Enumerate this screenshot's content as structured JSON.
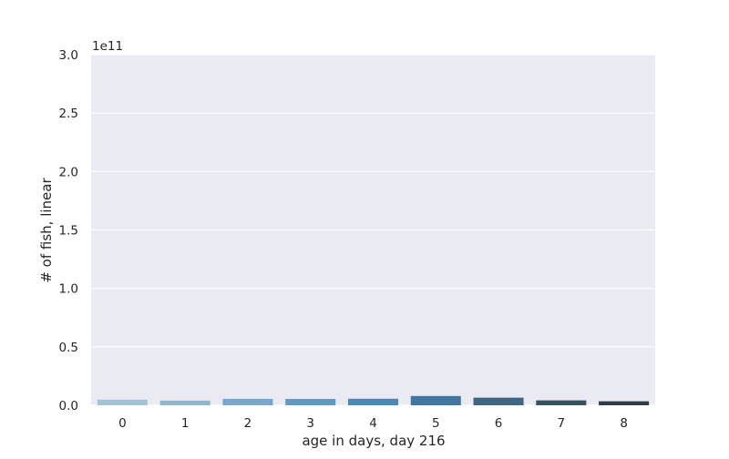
{
  "chart_data": {
    "type": "bar",
    "categories": [
      "0",
      "1",
      "2",
      "3",
      "4",
      "5",
      "6",
      "7",
      "8"
    ],
    "values": [
      4800000000.0,
      4000000000.0,
      5500000000.0,
      5400000000.0,
      5600000000.0,
      7900000000.0,
      6500000000.0,
      4200000000.0,
      3400000000.0
    ],
    "colors": [
      "#a3c2d8",
      "#8db6d3",
      "#76a8ca",
      "#5f99c2",
      "#4a88b8",
      "#4177a0",
      "#3d6683",
      "#385265",
      "#2f3c46"
    ],
    "xlabel": "age in days, day 216",
    "ylabel": "# of fish, linear",
    "ylim": [
      0,
      300000000000.0
    ],
    "yticks": [
      0,
      0.5,
      1.0,
      1.5,
      2.0,
      2.5,
      3.0
    ],
    "ytick_labels": [
      "0.0",
      "0.5",
      "1.0",
      "1.5",
      "2.0",
      "2.5",
      "3.0"
    ],
    "offset_label": "1e11",
    "grid": true
  }
}
